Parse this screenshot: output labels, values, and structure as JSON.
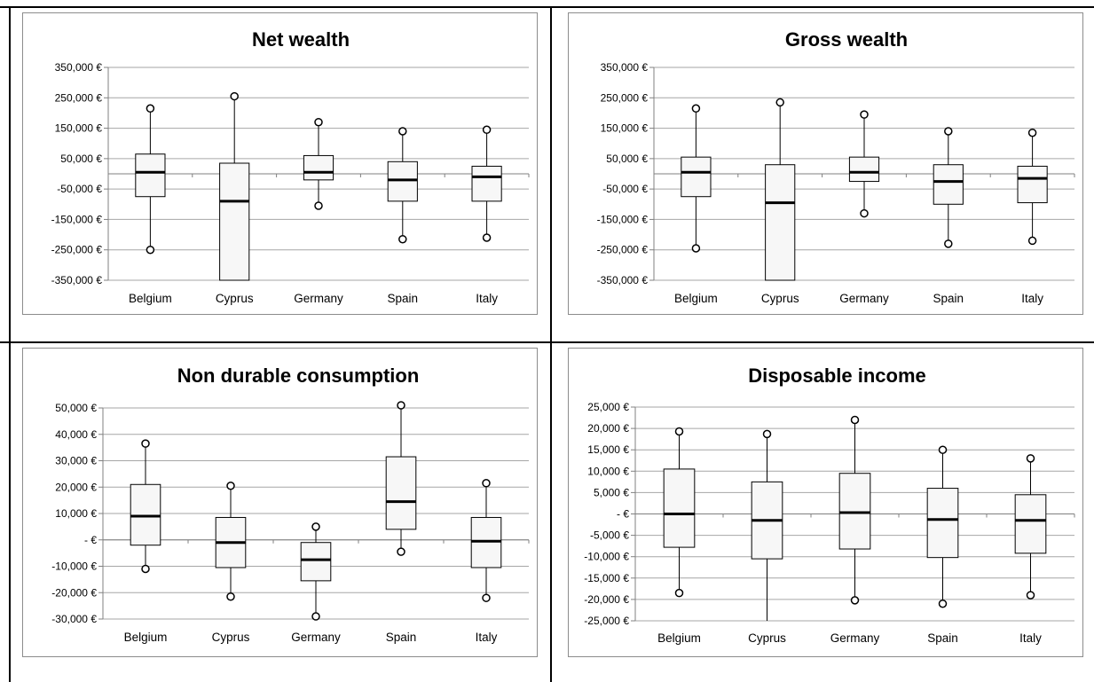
{
  "chart_data": [
    {
      "type": "box",
      "title": "Net wealth",
      "categories": [
        "Belgium",
        "Cyprus",
        "Germany",
        "Spain",
        "Italy"
      ],
      "ylim": [
        -350000,
        350000
      ],
      "yticks": [
        350000,
        250000,
        150000,
        50000,
        -50000,
        -150000,
        -250000,
        -350000
      ],
      "ytick_labels": [
        "350,000 €",
        "250,000 €",
        "150,000 €",
        "50,000 €",
        "-50,000 €",
        "-150,000 €",
        "-250,000 €",
        "-350,000 €"
      ],
      "boxes": [
        {
          "whisker_low": -250000,
          "q1": -75000,
          "median": 5000,
          "q3": 65000,
          "whisker_high": 215000
        },
        {
          "whisker_low": -350000,
          "q1": -350000,
          "median": -90000,
          "q3": 35000,
          "whisker_high": 255000,
          "no_low_point": true
        },
        {
          "whisker_low": -105000,
          "q1": -20000,
          "median": 5000,
          "q3": 60000,
          "whisker_high": 170000
        },
        {
          "whisker_low": -215000,
          "q1": -90000,
          "median": -20000,
          "q3": 40000,
          "whisker_high": 140000
        },
        {
          "whisker_low": -210000,
          "q1": -90000,
          "median": -10000,
          "q3": 25000,
          "whisker_high": 145000
        }
      ],
      "grid": true
    },
    {
      "type": "box",
      "title": "Gross wealth",
      "categories": [
        "Belgium",
        "Cyprus",
        "Germany",
        "Spain",
        "Italy"
      ],
      "ylim": [
        -350000,
        350000
      ],
      "yticks": [
        350000,
        250000,
        150000,
        50000,
        -50000,
        -150000,
        -250000,
        -350000
      ],
      "ytick_labels": [
        "350,000 €",
        "250,000 €",
        "150,000 €",
        "50,000 €",
        "-50,000 €",
        "-150,000 €",
        "-250,000 €",
        "-350,000 €"
      ],
      "boxes": [
        {
          "whisker_low": -245000,
          "q1": -75000,
          "median": 5000,
          "q3": 55000,
          "whisker_high": 215000
        },
        {
          "whisker_low": -350000,
          "q1": -350000,
          "median": -95000,
          "q3": 30000,
          "whisker_high": 235000,
          "no_low_point": true
        },
        {
          "whisker_low": -130000,
          "q1": -25000,
          "median": 5000,
          "q3": 55000,
          "whisker_high": 195000
        },
        {
          "whisker_low": -230000,
          "q1": -100000,
          "median": -25000,
          "q3": 30000,
          "whisker_high": 140000
        },
        {
          "whisker_low": -220000,
          "q1": -95000,
          "median": -15000,
          "q3": 25000,
          "whisker_high": 135000
        }
      ],
      "grid": true
    },
    {
      "type": "box",
      "title": "Non durable consumption",
      "categories": [
        "Belgium",
        "Cyprus",
        "Germany",
        "Spain",
        "Italy"
      ],
      "ylim": [
        -30000,
        50000
      ],
      "yticks": [
        50000,
        40000,
        30000,
        20000,
        10000,
        0,
        -10000,
        -20000,
        -30000
      ],
      "ytick_labels": [
        "50,000 €",
        "40,000 €",
        "30,000 €",
        "20,000 €",
        "10,000 €",
        "-   €",
        "-10,000 €",
        "-20,000 €",
        "-30,000 €"
      ],
      "boxes": [
        {
          "whisker_low": -11000,
          "q1": -2000,
          "median": 9000,
          "q3": 21000,
          "whisker_high": 36500
        },
        {
          "whisker_low": -21500,
          "q1": -10500,
          "median": -1000,
          "q3": 8500,
          "whisker_high": 20500
        },
        {
          "whisker_low": -29000,
          "q1": -15500,
          "median": -7500,
          "q3": -1000,
          "whisker_high": 5000
        },
        {
          "whisker_low": -4500,
          "q1": 4000,
          "median": 14500,
          "q3": 31500,
          "whisker_high": 51000
        },
        {
          "whisker_low": -22000,
          "q1": -10500,
          "median": -500,
          "q3": 8500,
          "whisker_high": 21500
        }
      ],
      "grid": true
    },
    {
      "type": "box",
      "title": "Disposable income",
      "categories": [
        "Belgium",
        "Cyprus",
        "Germany",
        "Spain",
        "Italy"
      ],
      "ylim": [
        -25000,
        25000
      ],
      "yticks": [
        25000,
        20000,
        15000,
        10000,
        5000,
        0,
        -5000,
        -10000,
        -15000,
        -20000,
        -25000
      ],
      "ytick_labels": [
        "25,000 €",
        "20,000 €",
        "15,000 €",
        "10,000 €",
        "5,000 €",
        "-   €",
        "-5,000 €",
        "-10,000 €",
        "-15,000 €",
        "-20,000 €",
        "-25,000 €"
      ],
      "boxes": [
        {
          "whisker_low": -18500,
          "q1": -7800,
          "median": 0,
          "q3": 10500,
          "whisker_high": 19300
        },
        {
          "whisker_low": -25000,
          "q1": -10500,
          "median": -1500,
          "q3": 7500,
          "whisker_high": 18700,
          "no_low_point": true
        },
        {
          "whisker_low": -20200,
          "q1": -8200,
          "median": 300,
          "q3": 9500,
          "whisker_high": 22000
        },
        {
          "whisker_low": -21000,
          "q1": -10200,
          "median": -1300,
          "q3": 6000,
          "whisker_high": 15000
        },
        {
          "whisker_low": -19000,
          "q1": -9200,
          "median": -1500,
          "q3": 4500,
          "whisker_high": 13000
        }
      ],
      "grid": true
    }
  ]
}
